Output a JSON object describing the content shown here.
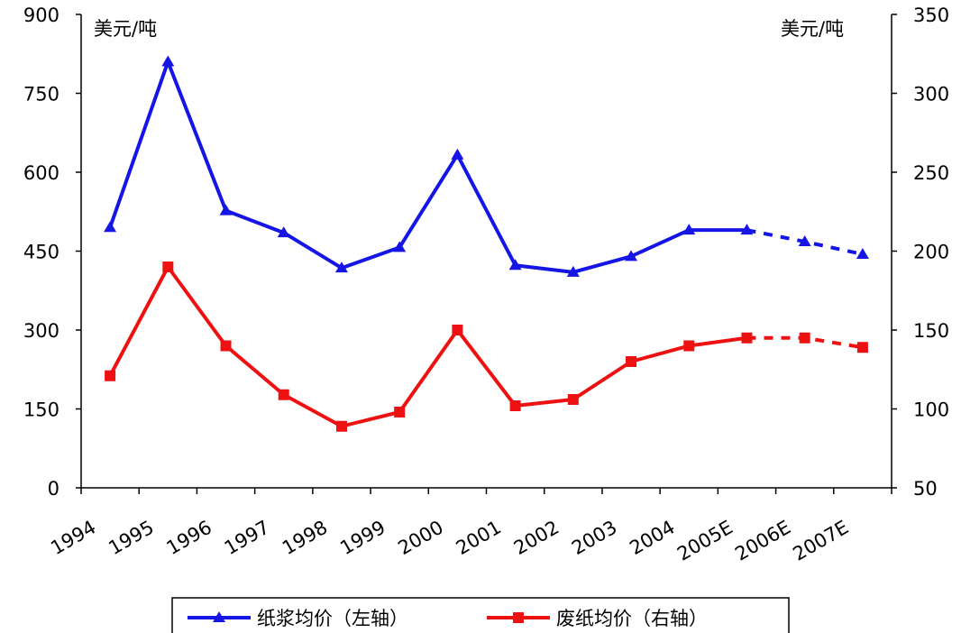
{
  "chart_data": {
    "type": "line",
    "categories": [
      "1994",
      "1995",
      "1996",
      "1997",
      "1998",
      "1999",
      "2000",
      "2001",
      "2002",
      "2003",
      "2004",
      "2005E",
      "2006E",
      "2007E"
    ],
    "left_axis": {
      "unit": "美元/吨",
      "ylim": [
        0,
        900
      ],
      "ticks": [
        "0",
        "150",
        "300",
        "450",
        "600",
        "750",
        "900"
      ]
    },
    "right_axis": {
      "unit": "美元/吨",
      "ylim": [
        50,
        350
      ],
      "ticks": [
        "50",
        "100",
        "150",
        "200",
        "250",
        "300",
        "350"
      ]
    },
    "series": [
      {
        "name": "纸浆均价（左轴）",
        "axis": "left",
        "color": "#1515e6",
        "marker": "triangle",
        "values": [
          495,
          810,
          527,
          485,
          418,
          457,
          633,
          423,
          410,
          440,
          490,
          490,
          468,
          444
        ],
        "projected_from_index": 11
      },
      {
        "name": "废纸均价（右轴）",
        "axis": "right",
        "color": "#ee1111",
        "marker": "square",
        "values": [
          121,
          190,
          140,
          109,
          89,
          98,
          150,
          102,
          106,
          130,
          140,
          145,
          145,
          139
        ],
        "projected_from_index": 11
      }
    ],
    "grid": false,
    "legend_position": "bottom"
  }
}
